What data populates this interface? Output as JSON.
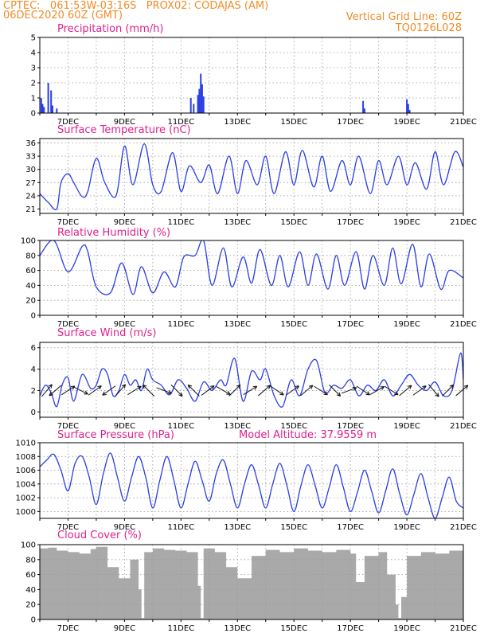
{
  "header": {
    "line1_left": "CPTEC:   061:53W-03:16S   PROX02: CODAJAS (AM)",
    "line2_left": "06DEC2020 60Z (GMT)",
    "line2_right": "Vertical Grid Line: 60Z",
    "line3_right": "TQ0126L028"
  },
  "colors": {
    "header": "#f08c28",
    "titles": "#e0208c",
    "series": "#2a3ee6",
    "bars": "#2a3ee6",
    "cloud": "#a9a9a9",
    "grid": "#9a9a9a"
  },
  "chart_data": [
    {
      "id": "precip",
      "type": "bar",
      "title": "Precipitation (mm/h)",
      "x_ticks": [
        "7DEC",
        "9DEC",
        "11DEC",
        "13DEC",
        "15DEC",
        "17DEC",
        "19DEC",
        "21DEC"
      ],
      "ylim": [
        0,
        5
      ],
      "y_ticks": [
        0,
        1,
        2,
        3,
        4,
        5
      ],
      "grid": true,
      "x": [
        6.05,
        6.1,
        6.15,
        6.3,
        6.4,
        6.45,
        6.6,
        11.35,
        11.45,
        11.6,
        11.65,
        11.7,
        11.75,
        11.8,
        17.45,
        17.5,
        19.0,
        19.05,
        19.1
      ],
      "values": [
        1.0,
        0.6,
        0.4,
        2.0,
        1.5,
        0.5,
        0.3,
        1.0,
        0.6,
        1.2,
        1.6,
        2.6,
        1.9,
        1.1,
        0.8,
        0.3,
        0.9,
        0.6,
        0.2
      ]
    },
    {
      "id": "temp",
      "type": "line",
      "title": "Surface Temperature (nC)",
      "x_ticks": [
        "7DEC",
        "9DEC",
        "11DEC",
        "13DEC",
        "15DEC",
        "17DEC",
        "19DEC",
        "21DEC"
      ],
      "ylim": [
        20,
        37
      ],
      "y_ticks": [
        21,
        24,
        27,
        30,
        33,
        36
      ],
      "grid": true,
      "x": [
        6.0,
        6.3,
        6.6,
        6.75,
        7.0,
        7.2,
        7.5,
        7.7,
        8.0,
        8.3,
        8.7,
        9.0,
        9.3,
        9.7,
        10.0,
        10.3,
        10.7,
        11.0,
        11.3,
        11.7,
        12.0,
        12.3,
        12.7,
        13.0,
        13.3,
        13.7,
        14.0,
        14.3,
        14.7,
        15.0,
        15.3,
        15.7,
        16.0,
        16.3,
        16.7,
        17.0,
        17.3,
        17.7,
        18.0,
        18.3,
        18.7,
        19.0,
        19.3,
        19.7,
        20.0,
        20.3,
        20.7,
        21.0
      ],
      "values": [
        24.5,
        22.5,
        21.0,
        27.0,
        29.0,
        27.0,
        23.8,
        25.0,
        32.5,
        27.0,
        24.0,
        35.3,
        26.5,
        35.8,
        26.5,
        25.0,
        33.8,
        25.0,
        30.8,
        27.0,
        31.0,
        24.5,
        33.0,
        24.5,
        32.0,
        26.5,
        33.0,
        24.5,
        34.0,
        26.5,
        34.3,
        26.0,
        33.0,
        25.0,
        32.0,
        26.5,
        33.0,
        24.5,
        32.0,
        26.5,
        33.0,
        26.5,
        31.5,
        25.5,
        34.0,
        26.5,
        34.0,
        30.5
      ]
    },
    {
      "id": "rh",
      "type": "line",
      "title": "Relative Humidity (%)",
      "x_ticks": [
        "7DEC",
        "9DEC",
        "11DEC",
        "13DEC",
        "15DEC",
        "17DEC",
        "19DEC",
        "21DEC"
      ],
      "ylim": [
        0,
        100
      ],
      "y_ticks": [
        0,
        20,
        40,
        60,
        80,
        100
      ],
      "grid": true,
      "x": [
        6.0,
        6.5,
        7.0,
        7.5,
        7.7,
        8.0,
        8.5,
        8.9,
        9.3,
        9.6,
        10.0,
        10.4,
        10.8,
        11.1,
        11.5,
        11.8,
        12.1,
        12.5,
        12.8,
        13.2,
        13.5,
        13.8,
        14.2,
        14.5,
        14.8,
        15.2,
        15.5,
        15.8,
        16.2,
        16.5,
        16.8,
        17.2,
        17.5,
        17.8,
        18.2,
        18.5,
        18.8,
        19.2,
        19.5,
        19.8,
        20.2,
        20.5,
        21.0
      ],
      "values": [
        80,
        100,
        58,
        92,
        85,
        38,
        30,
        70,
        28,
        65,
        30,
        58,
        38,
        78,
        80,
        100,
        40,
        90,
        38,
        78,
        43,
        88,
        40,
        80,
        38,
        85,
        40,
        82,
        35,
        80,
        40,
        85,
        35,
        80,
        40,
        90,
        42,
        95,
        38,
        82,
        35,
        60,
        50
      ]
    },
    {
      "id": "wind",
      "type": "line",
      "title": "Surface Wind (m/s)",
      "x_ticks": [
        "7DEC",
        "9DEC",
        "11DEC",
        "13DEC",
        "15DEC",
        "17DEC",
        "19DEC",
        "21DEC"
      ],
      "ylim": [
        -0.5,
        6.5
      ],
      "y_ticks": [
        0,
        2,
        4,
        6
      ],
      "grid": true,
      "x": [
        6.0,
        6.2,
        6.4,
        6.6,
        6.8,
        7.0,
        7.2,
        7.5,
        7.8,
        8.0,
        8.2,
        8.4,
        8.6,
        8.8,
        9.0,
        9.2,
        9.4,
        9.6,
        9.8,
        10.0,
        10.3,
        10.6,
        10.9,
        11.2,
        11.5,
        11.8,
        12.1,
        12.4,
        12.6,
        12.9,
        13.2,
        13.5,
        13.8,
        14.0,
        14.3,
        14.6,
        14.9,
        15.2,
        15.5,
        15.8,
        16.1,
        16.4,
        16.7,
        17.0,
        17.3,
        17.6,
        17.9,
        18.2,
        18.5,
        18.8,
        19.1,
        19.4,
        19.7,
        20.0,
        20.3,
        20.6,
        20.9,
        21.0
      ],
      "values": [
        1.5,
        2.5,
        1.8,
        0.5,
        2.6,
        3.2,
        1.0,
        3.5,
        2.2,
        2.5,
        4.0,
        3.5,
        1.5,
        2.0,
        3.5,
        2.5,
        3.0,
        2.0,
        4.0,
        3.0,
        2.5,
        1.6,
        3.0,
        2.2,
        1.0,
        2.8,
        2.0,
        3.0,
        2.5,
        5.0,
        1.0,
        3.8,
        3.0,
        4.0,
        1.5,
        0.5,
        3.0,
        1.5,
        4.0,
        4.8,
        1.8,
        2.5,
        2.2,
        3.0,
        1.5,
        2.5,
        2.0,
        3.0,
        1.5,
        2.5,
        3.5,
        2.5,
        2.0,
        2.8,
        1.5,
        2.0,
        5.5,
        3.0
      ],
      "arrow_x": [
        6.25,
        6.55,
        7.0,
        7.45,
        7.95,
        8.45,
        8.85,
        9.35,
        9.85,
        10.4,
        10.85,
        11.45,
        11.95,
        12.5,
        12.9,
        13.45,
        13.95,
        14.4,
        14.95,
        15.45,
        15.95,
        16.45,
        16.95,
        17.45,
        17.95,
        18.45,
        18.95,
        19.45,
        19.95,
        20.45,
        20.95
      ],
      "arrow_u": [
        0.6,
        -0.7,
        0.9,
        0.8,
        0.7,
        -0.7,
        0.6,
        0.8,
        -0.6,
        0.8,
        0.5,
        -0.6,
        0.8,
        0.7,
        0.6,
        0.8,
        0.7,
        0.6,
        0.7,
        0.6,
        0.8,
        0.5,
        0.8,
        0.6,
        0.7,
        0.8,
        0.6,
        0.7,
        0.5,
        0.6,
        0.7
      ],
      "arrow_v": [
        0.7,
        -0.6,
        0.6,
        -0.4,
        0.5,
        -0.5,
        0.7,
        0.5,
        0.6,
        -0.3,
        -0.5,
        0.6,
        0.6,
        -0.4,
        0.6,
        0.5,
        0.6,
        -0.4,
        0.5,
        0.5,
        -0.5,
        -0.5,
        0.3,
        -0.4,
        0.4,
        -0.5,
        0.5,
        0.5,
        -0.6,
        0.6,
        0.6
      ]
    },
    {
      "id": "pres",
      "type": "line",
      "title": "Surface Pressure (hPa)",
      "annotation": "Model Altitude: 37.9559 m",
      "x_ticks": [
        "7DEC",
        "9DEC",
        "11DEC",
        "13DEC",
        "15DEC",
        "17DEC",
        "19DEC",
        "21DEC"
      ],
      "ylim": [
        999,
        1010
      ],
      "y_ticks": [
        1000,
        1002,
        1004,
        1006,
        1008,
        1010
      ],
      "grid": true,
      "x": [
        6.0,
        6.25,
        6.5,
        6.75,
        7.0,
        7.25,
        7.5,
        7.75,
        8.0,
        8.25,
        8.5,
        8.75,
        9.0,
        9.25,
        9.5,
        9.75,
        10.0,
        10.25,
        10.5,
        10.75,
        11.0,
        11.25,
        11.5,
        11.75,
        12.0,
        12.25,
        12.5,
        12.75,
        13.0,
        13.25,
        13.5,
        13.75,
        14.0,
        14.25,
        14.5,
        14.75,
        15.0,
        15.25,
        15.5,
        15.75,
        16.0,
        16.25,
        16.5,
        16.75,
        17.0,
        17.25,
        17.5,
        17.75,
        18.0,
        18.25,
        18.5,
        18.75,
        19.0,
        19.25,
        19.5,
        19.75,
        20.0,
        20.25,
        20.5,
        20.75,
        21.0
      ],
      "values": [
        1006.5,
        1007.5,
        1008.3,
        1006.0,
        1003.0,
        1007.0,
        1008.0,
        1005.0,
        1001.0,
        1005.5,
        1008.5,
        1005.0,
        1001.5,
        1005.0,
        1008.0,
        1005.0,
        1000.5,
        1004.5,
        1008.0,
        1004.5,
        1000.5,
        1004.0,
        1007.3,
        1004.5,
        1001.5,
        1005.5,
        1007.5,
        1004.0,
        1000.5,
        1004.0,
        1006.8,
        1003.8,
        1000.5,
        1004.0,
        1007.0,
        1003.8,
        1000.0,
        1003.8,
        1006.8,
        1003.8,
        1000.5,
        1003.5,
        1006.8,
        1003.5,
        1000.0,
        1002.8,
        1006.0,
        1003.0,
        999.8,
        1003.0,
        1006.2,
        1002.5,
        999.5,
        1002.5,
        1005.5,
        1002.0,
        999.0,
        1002.0,
        1005.0,
        1001.5,
        1000.5
      ]
    },
    {
      "id": "cloud",
      "type": "area",
      "title": "Cloud Cover (%)",
      "x_ticks": [
        "7DEC",
        "9DEC",
        "11DEC",
        "13DEC",
        "15DEC",
        "17DEC",
        "19DEC",
        "21DEC"
      ],
      "ylim": [
        0,
        100
      ],
      "y_ticks": [
        0,
        20,
        40,
        60,
        80,
        100
      ],
      "grid": true,
      "x": [
        6.0,
        6.3,
        6.6,
        7.0,
        7.4,
        7.8,
        8.0,
        8.4,
        8.8,
        9.2,
        9.5,
        9.6,
        9.7,
        10.0,
        10.4,
        10.8,
        11.2,
        11.6,
        11.7,
        11.8,
        12.2,
        12.6,
        13.0,
        13.5,
        14.0,
        14.5,
        15.0,
        15.5,
        16.0,
        16.5,
        17.0,
        17.2,
        17.5,
        18.0,
        18.3,
        18.6,
        18.7,
        18.8,
        19.0,
        19.5,
        20.0,
        20.5,
        21.0
      ],
      "values": [
        95,
        96,
        92,
        90,
        88,
        94,
        97,
        70,
        55,
        80,
        40,
        2,
        90,
        95,
        93,
        92,
        90,
        45,
        2,
        95,
        90,
        70,
        55,
        85,
        93,
        90,
        95,
        92,
        90,
        93,
        88,
        50,
        85,
        90,
        60,
        20,
        2,
        30,
        85,
        90,
        88,
        92,
        95
      ]
    }
  ]
}
